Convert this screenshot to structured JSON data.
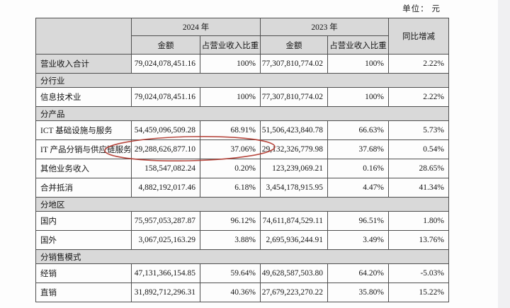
{
  "page": {
    "unit_label": "单位： 元"
  },
  "table": {
    "header": {
      "year_2024": "2024 年",
      "year_2023": "2023 年",
      "amount_2024": "金额",
      "share_2024": "占营业收入比重",
      "amount_2023": "金额",
      "share_2023": "占营业收入比重",
      "yoy": "同比增减"
    },
    "rows": [
      {
        "type": "total",
        "label": "营业收入合计",
        "a2024": "79,024,078,451.16",
        "p2024": "100%",
        "a2023": "77,307,810,774.02",
        "p2023": "100%",
        "yoy": "2.22%"
      },
      {
        "type": "section",
        "label": "分行业"
      },
      {
        "type": "data",
        "label": "信息技术业",
        "a2024": "79,024,078,451.16",
        "p2024": "100%",
        "a2023": "77,307,810,774.02",
        "p2023": "100%",
        "yoy": "2.22%"
      },
      {
        "type": "section",
        "label": "分产品"
      },
      {
        "type": "data",
        "label": "ICT 基础设施与服务",
        "a2024": "54,459,096,509.28",
        "p2024": "68.91%",
        "a2023": "51,506,423,840.78",
        "p2023": "66.63%",
        "yoy": "5.73%"
      },
      {
        "type": "data",
        "label": "IT 产品分销与供应链服务",
        "a2024": "29,288,626,877.10",
        "p2024": "37.06%",
        "a2023": "29,132,326,779.98",
        "p2023": "37.68%",
        "yoy": "0.54%",
        "highlighted": true
      },
      {
        "type": "data",
        "label": "其他业务收入",
        "a2024": "158,547,082.24",
        "p2024": "0.20%",
        "a2023": "123,239,069.21",
        "p2023": "0.16%",
        "yoy": "28.65%"
      },
      {
        "type": "data",
        "label": "合并抵消",
        "a2024": "4,882,192,017.46",
        "p2024": "6.18%",
        "a2023": "3,454,178,915.95",
        "p2023": "4.47%",
        "yoy": "41.34%"
      },
      {
        "type": "section",
        "label": "分地区"
      },
      {
        "type": "data",
        "label": "国内",
        "a2024": "75,957,053,287.87",
        "p2024": "96.12%",
        "a2023": "74,611,874,529.11",
        "p2023": "96.51%",
        "yoy": "1.80%"
      },
      {
        "type": "data",
        "label": "国外",
        "a2024": "3,067,025,163.29",
        "p2024": "3.88%",
        "a2023": "2,695,936,244.91",
        "p2023": "3.49%",
        "yoy": "13.76%"
      },
      {
        "type": "section",
        "label": "分销售模式"
      },
      {
        "type": "data",
        "label": "经销",
        "a2024": "47,131,366,154.85",
        "p2024": "59.64%",
        "a2023": "49,628,587,503.80",
        "p2023": "64.20%",
        "yoy": "-5.03%"
      },
      {
        "type": "data",
        "label": "直销",
        "a2024": "31,892,712,296.31",
        "p2024": "40.36%",
        "a2023": "27,679,223,270.22",
        "p2023": "35.80%",
        "yoy": "15.22%"
      }
    ],
    "annotation": {
      "shape": "ellipse",
      "color": "#b23a30",
      "target_row": "IT 产品分销与供应链服务"
    }
  },
  "colors": {
    "header_fill": "#d9d9d9",
    "border": "#4f4f4f",
    "highlight_stroke": "#b23a30",
    "side_strip": "#f0f0f2"
  }
}
